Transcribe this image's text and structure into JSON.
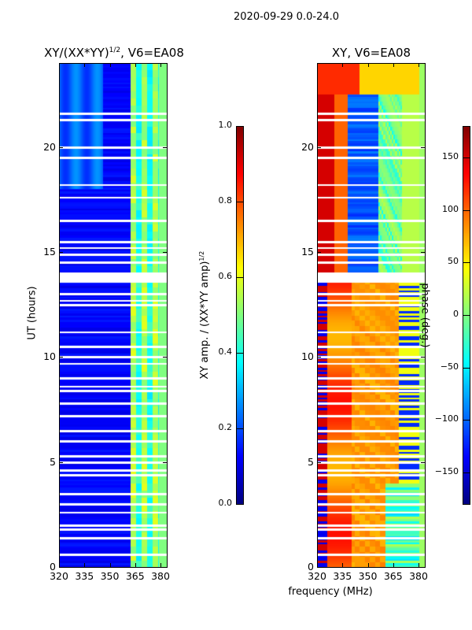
{
  "suptitle": "2020-09-29 0.0-24.0",
  "xlabel": "frequency (MHz)",
  "chart_data": [
    {
      "type": "heatmap",
      "title": "XY/(XX*YY)^1/2, V6=EA08",
      "title_main": "XY/(XX*YY)",
      "title_sup": "1/2",
      "title_tail": ", V6=EA08",
      "xlabel": "frequency (MHz)",
      "ylabel": "UT (hours)",
      "xlim": [
        320,
        383.7
      ],
      "ylim": [
        0,
        24
      ],
      "xticks": [
        320,
        335,
        350,
        365,
        380
      ],
      "yticks": [
        0,
        5,
        10,
        15,
        20
      ],
      "colormap": "jet",
      "colorbar": {
        "label_main": "XY amp. / (XX*YY amp)",
        "label_sup": "1/2",
        "range": [
          0,
          1
        ],
        "ticks": [
          "0.0",
          "0.2",
          "0.4",
          "0.6",
          "0.8",
          "1.0"
        ]
      },
      "description_values": "mostly 0.05-0.2; 362-382 MHz channels 0.3-0.6; 320-345 MHz above 18 h ~0.25"
    },
    {
      "type": "heatmap",
      "title": "XY, V6=EA08",
      "xlabel": "frequency (MHz)",
      "xlim": [
        320,
        383.7
      ],
      "ylim": [
        0,
        24
      ],
      "xticks": [
        320,
        335,
        350,
        365,
        380
      ],
      "yticks": [
        0,
        5,
        10,
        15,
        20
      ],
      "colormap": "jet",
      "colorbar": {
        "label": "phase (deg.)",
        "range": [
          -180,
          180
        ],
        "ticks": [
          "150",
          "100",
          "50",
          "0",
          "−50",
          "−100",
          "−150"
        ]
      }
    }
  ],
  "flagged_hours": [
    0.6,
    1.4,
    1.8,
    2.0,
    2.6,
    3.0,
    3.5,
    4.4,
    4.6,
    5.0,
    5.3,
    6.0,
    6.5,
    7.2,
    7.8,
    8.4,
    8.6,
    9.0,
    9.7,
    10.0,
    10.5,
    11.2,
    12.5,
    12.7,
    13.0,
    13.6,
    13.8,
    14.0,
    14.5,
    14.9,
    15.2,
    15.5,
    16.5,
    17.6,
    18.2,
    19.5,
    20.0,
    21.3,
    21.6
  ]
}
